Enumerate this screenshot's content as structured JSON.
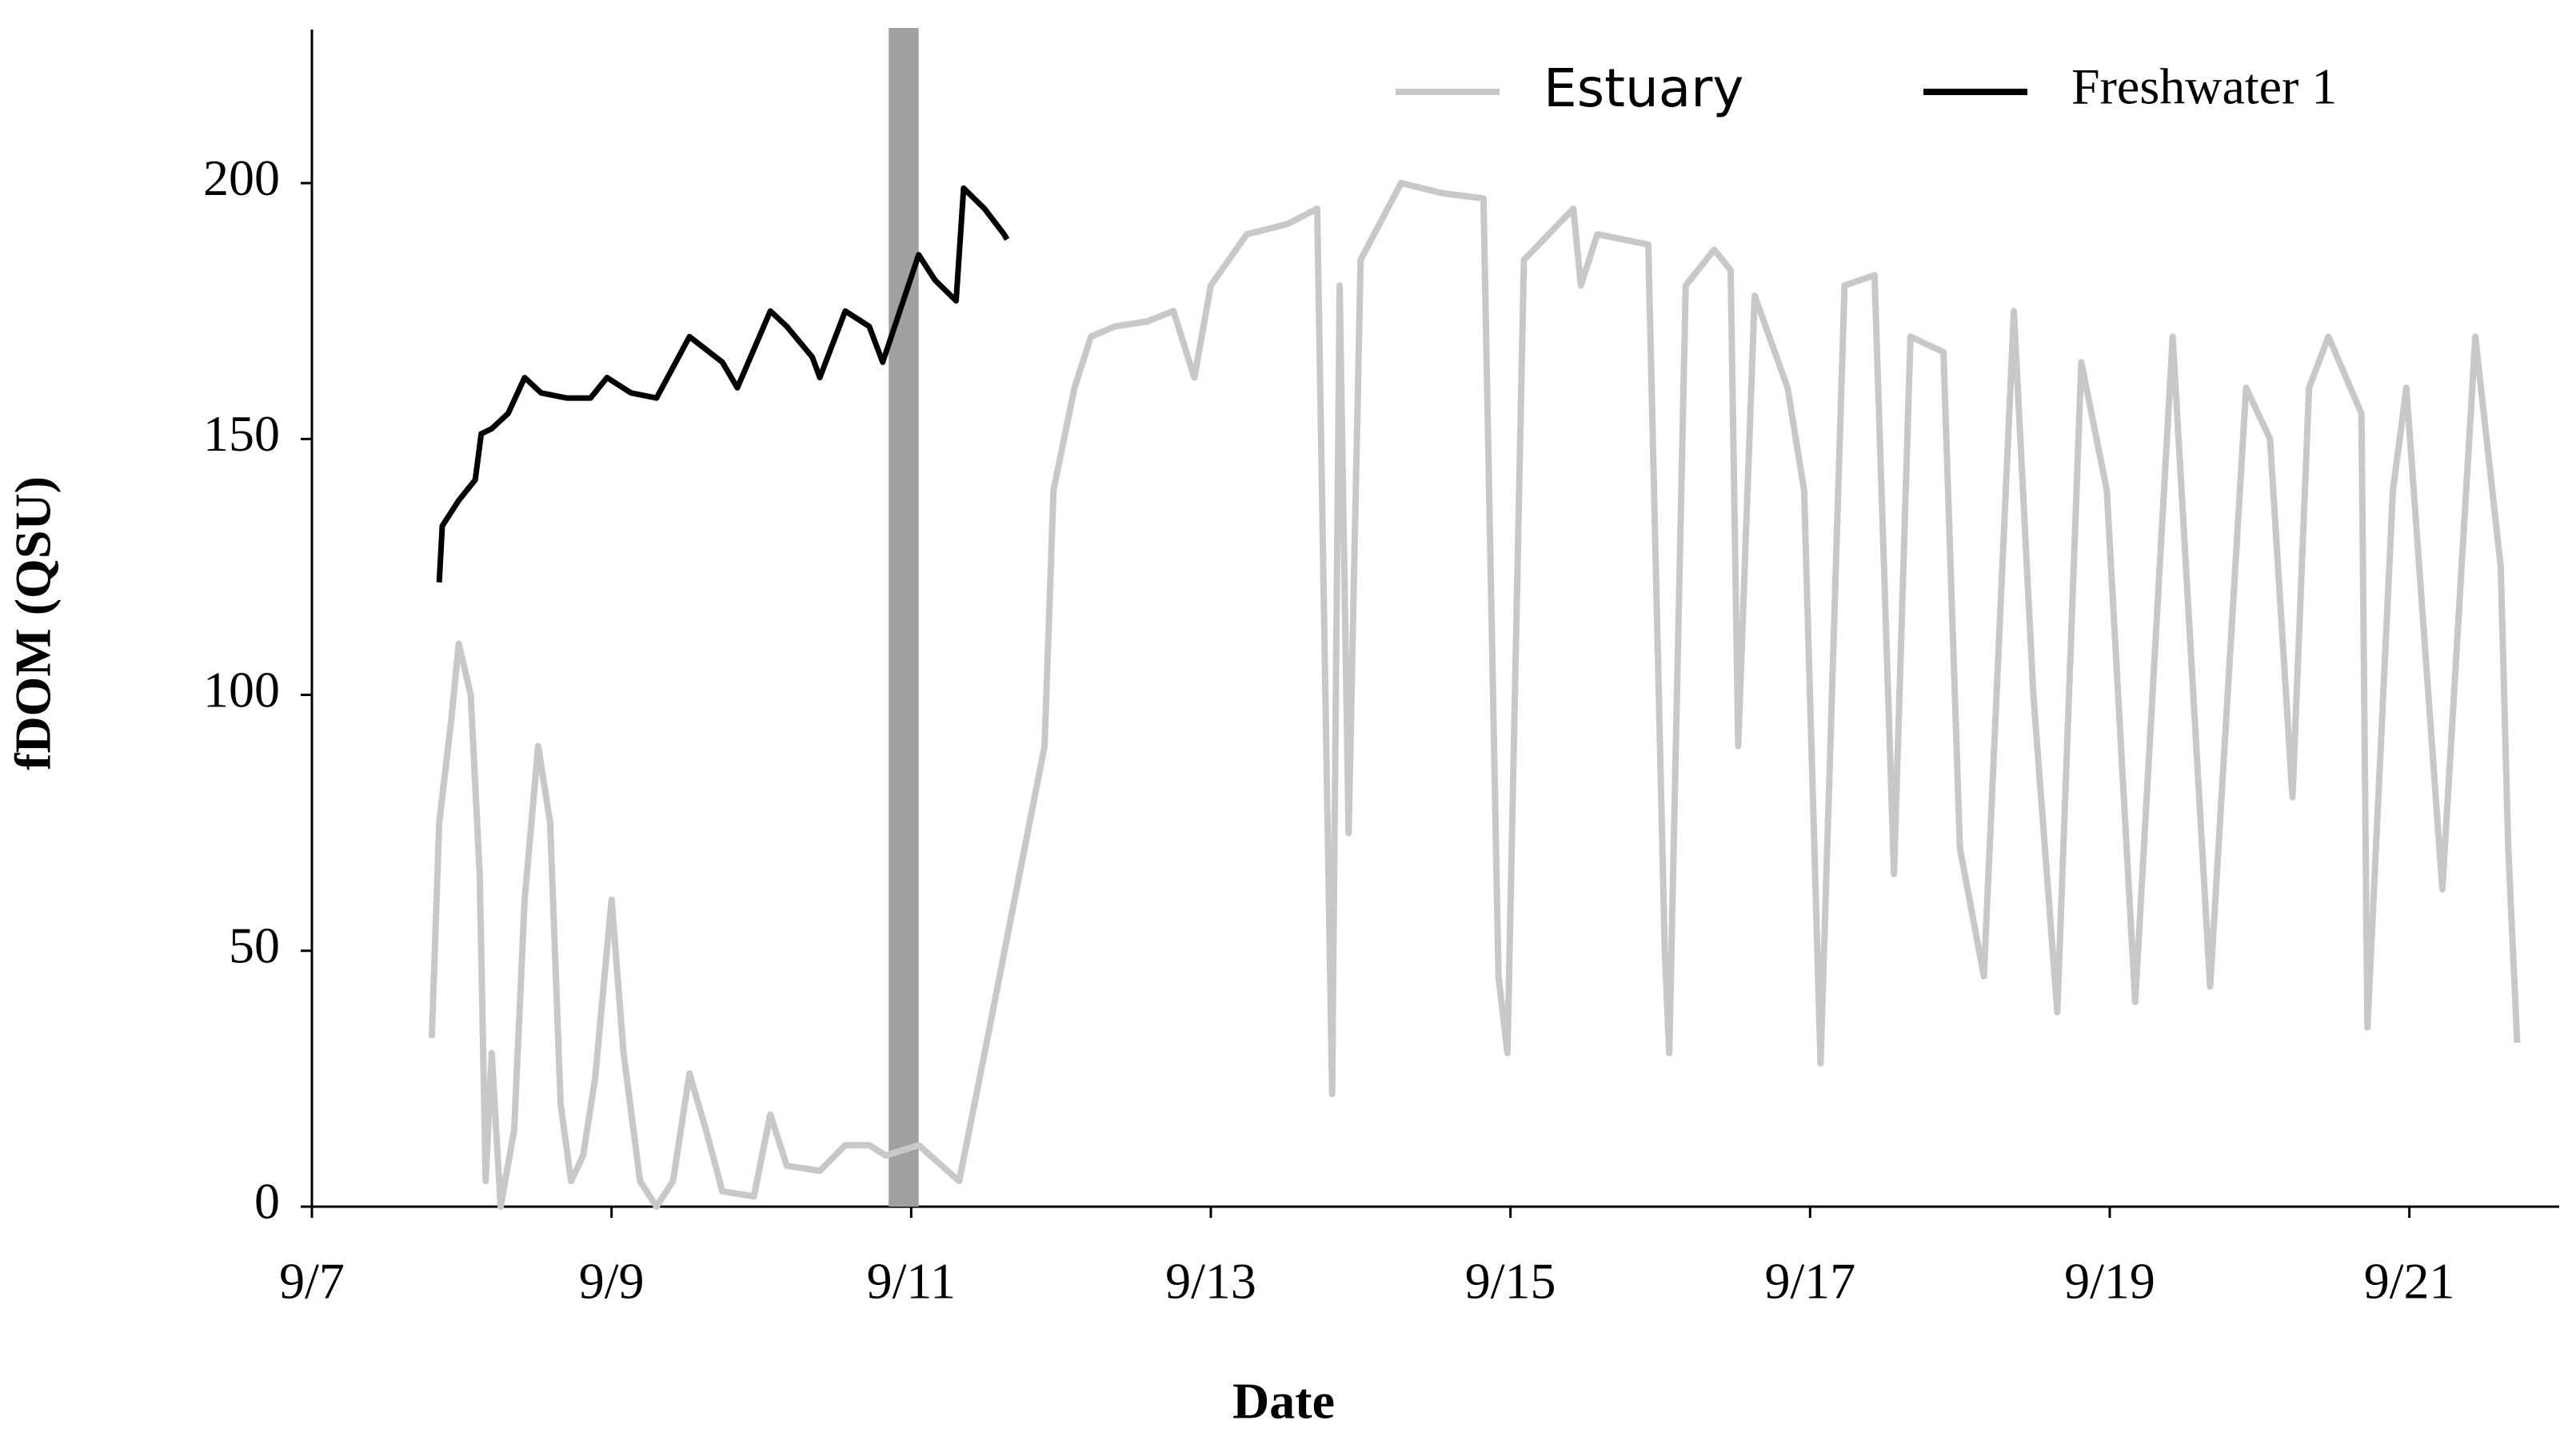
{
  "chart_data": {
    "type": "line",
    "xlabel": "Date",
    "ylabel": "fDOM (QSU)",
    "xlim": [
      7,
      22
    ],
    "ylim": [
      0,
      230
    ],
    "xticks": [
      {
        "value": 7,
        "label": "9/7"
      },
      {
        "value": 9,
        "label": "9/9"
      },
      {
        "value": 11,
        "label": "9/11"
      },
      {
        "value": 13,
        "label": "9/13"
      },
      {
        "value": 15,
        "label": "9/15"
      },
      {
        "value": 17,
        "label": "9/17"
      },
      {
        "value": 19,
        "label": "9/19"
      },
      {
        "value": 21,
        "label": "9/21"
      }
    ],
    "yticks": [
      0,
      50,
      100,
      150,
      200
    ],
    "grid": false,
    "legend": "top-right",
    "shaded_region": {
      "x": [
        10.85,
        11.05
      ],
      "color": "#a0a0a0"
    },
    "series": [
      {
        "name": "Estuary",
        "color": "#c8c8c8",
        "x": [
          7.8,
          7.85,
          7.93,
          7.98,
          8.06,
          8.12,
          8.16,
          8.2,
          8.26,
          8.35,
          8.42,
          8.51,
          8.59,
          8.66,
          8.73,
          8.81,
          8.89,
          9.0,
          9.08,
          9.19,
          9.3,
          9.41,
          9.52,
          9.63,
          9.74,
          9.95,
          10.06,
          10.17,
          10.39,
          10.56,
          10.72,
          10.83,
          11.05,
          11.32,
          11.49,
          11.89,
          11.95,
          12.09,
          12.2,
          12.36,
          12.58,
          12.75,
          12.89,
          13.0,
          13.24,
          13.51,
          13.71,
          13.81,
          13.86,
          13.92,
          14.0,
          14.27,
          14.55,
          14.82,
          14.92,
          14.98,
          15.09,
          15.42,
          15.47,
          15.58,
          15.92,
          16.03,
          16.06,
          16.17,
          16.36,
          16.47,
          16.52,
          16.63,
          16.85,
          16.96,
          17.07,
          17.23,
          17.43,
          17.56,
          17.67,
          17.89,
          18.0,
          18.16,
          18.36,
          18.49,
          18.65,
          18.81,
          18.98,
          19.17,
          19.42,
          19.67,
          19.91,
          20.07,
          20.22,
          20.33,
          20.46,
          20.68,
          20.72,
          20.89,
          20.98,
          21.22,
          21.44,
          21.61,
          21.66,
          21.72
        ],
        "values": [
          33,
          75,
          95,
          110,
          100,
          65,
          5,
          30,
          0,
          15,
          60,
          90,
          75,
          20,
          5,
          10,
          25,
          60,
          30,
          5,
          0,
          5,
          26,
          15,
          3,
          2,
          18,
          8,
          7,
          12,
          12,
          10,
          12,
          5,
          30,
          90,
          140,
          160,
          170,
          172,
          173,
          175,
          162,
          180,
          190,
          192,
          195,
          22,
          180,
          73,
          185,
          200,
          198,
          197,
          45,
          30,
          185,
          195,
          180,
          190,
          188,
          50,
          30,
          180,
          187,
          183,
          90,
          178,
          160,
          140,
          28,
          180,
          182,
          65,
          170,
          167,
          70,
          45,
          175,
          100,
          38,
          165,
          140,
          40,
          170,
          43,
          160,
          150,
          80,
          160,
          170,
          155,
          35,
          140,
          160,
          62,
          170,
          125,
          70,
          32
        ]
      },
      {
        "name": "Freshwater 1",
        "color": "#000000",
        "x": [
          7.85,
          7.87,
          7.98,
          8.09,
          8.13,
          8.2,
          8.31,
          8.42,
          8.53,
          8.7,
          8.86,
          8.97,
          9.13,
          9.3,
          9.52,
          9.74,
          9.84,
          10.06,
          10.17,
          10.34,
          10.39,
          10.56,
          10.72,
          10.81,
          11.05,
          11.16,
          11.3,
          11.35,
          11.49,
          11.62,
          11.64
        ],
        "values": [
          122,
          133,
          138,
          142,
          151,
          152,
          155,
          162,
          159,
          158,
          158,
          162,
          159,
          158,
          170,
          165,
          160,
          175,
          172,
          166,
          162,
          175,
          172,
          165,
          186,
          181,
          177,
          199,
          195,
          190,
          189
        ]
      }
    ]
  }
}
